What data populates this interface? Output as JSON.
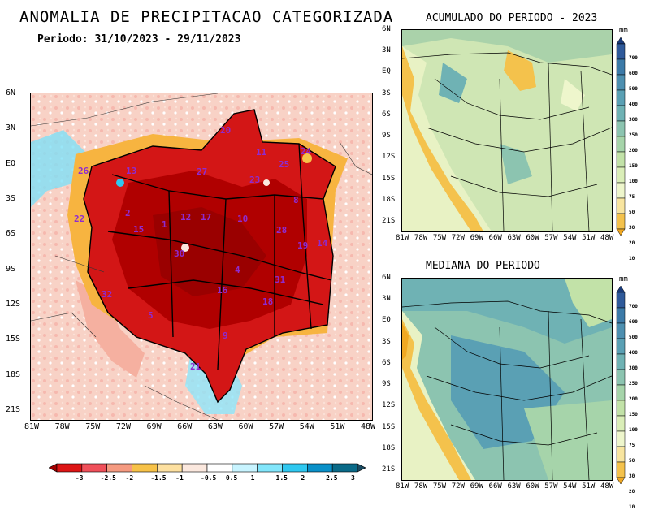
{
  "main": {
    "title": "ANOMALIA DE PRECIPITACAO CATEGORIZADA",
    "period": "Periodo: 31/10/2023 - 29/11/2023",
    "lat_labels": [
      "6N",
      "3N",
      "EQ",
      "3S",
      "6S",
      "9S",
      "12S",
      "15S",
      "18S",
      "21S"
    ],
    "lon_labels": [
      "81W",
      "78W",
      "75W",
      "72W",
      "69W",
      "66W",
      "63W",
      "60W",
      "57W",
      "54W",
      "51W",
      "48W"
    ],
    "basins": [
      "1",
      "2",
      "4",
      "5",
      "8",
      "9",
      "10",
      "11",
      "12",
      "13",
      "14",
      "15",
      "16",
      "17",
      "18",
      "19",
      "20",
      "21",
      "22",
      "23",
      "24",
      "25",
      "26",
      "27",
      "28",
      "30",
      "31",
      "32"
    ],
    "colorbar": {
      "ticks": [
        "-3",
        "-2.5",
        "-2",
        "-1.5",
        "-1",
        "-0.5",
        "0.5",
        "1",
        "1.5",
        "2",
        "2.5",
        "3"
      ],
      "colors": [
        "#a00000",
        "#dd1515",
        "#f0505a",
        "#f59a80",
        "#f7c248",
        "#fde0a0",
        "#fbe8de",
        "#ffffff",
        "#c8f4ff",
        "#82e6fb",
        "#2fc8f0",
        "#0a90c8",
        "#0a6a88",
        "#1a4a60"
      ]
    }
  },
  "top_right": {
    "title": "ACUMULADO DO PERIODO - 2023",
    "units": "mm",
    "lat_labels": [
      "6N",
      "3N",
      "EQ",
      "3S",
      "6S",
      "9S",
      "12S",
      "15S",
      "18S",
      "21S"
    ],
    "lon_labels": [
      "81W",
      "78W",
      "75W",
      "72W",
      "69W",
      "66W",
      "63W",
      "60W",
      "57W",
      "54W",
      "51W",
      "48W"
    ],
    "legend_ticks": [
      "700",
      "600",
      "500",
      "400",
      "300",
      "250",
      "200",
      "150",
      "100",
      "75",
      "50",
      "30",
      "20",
      "10"
    ]
  },
  "bottom_right": {
    "title": "MEDIANA DO PERIODO",
    "units": "mm",
    "lat_labels": [
      "6N",
      "3N",
      "EQ",
      "3S",
      "6S",
      "9S",
      "12S",
      "15S",
      "18S",
      "21S"
    ],
    "lon_labels": [
      "81W",
      "78W",
      "75W",
      "72W",
      "69W",
      "66W",
      "63W",
      "60W",
      "57W",
      "54W",
      "51W",
      "48W"
    ],
    "legend_ticks": [
      "700",
      "600",
      "500",
      "400",
      "300",
      "250",
      "200",
      "150",
      "100",
      "75",
      "50",
      "30",
      "20",
      "10"
    ]
  },
  "scale_colors": [
    "#1a3b7a",
    "#2f5a9a",
    "#3c7aa8",
    "#4d8fb0",
    "#5aa0b4",
    "#6fb2b4",
    "#8cc4b0",
    "#a6d4aa",
    "#c2e2a8",
    "#daeeb8",
    "#eef6cc",
    "#f8e5a0",
    "#f4c24c",
    "#f0a822"
  ]
}
